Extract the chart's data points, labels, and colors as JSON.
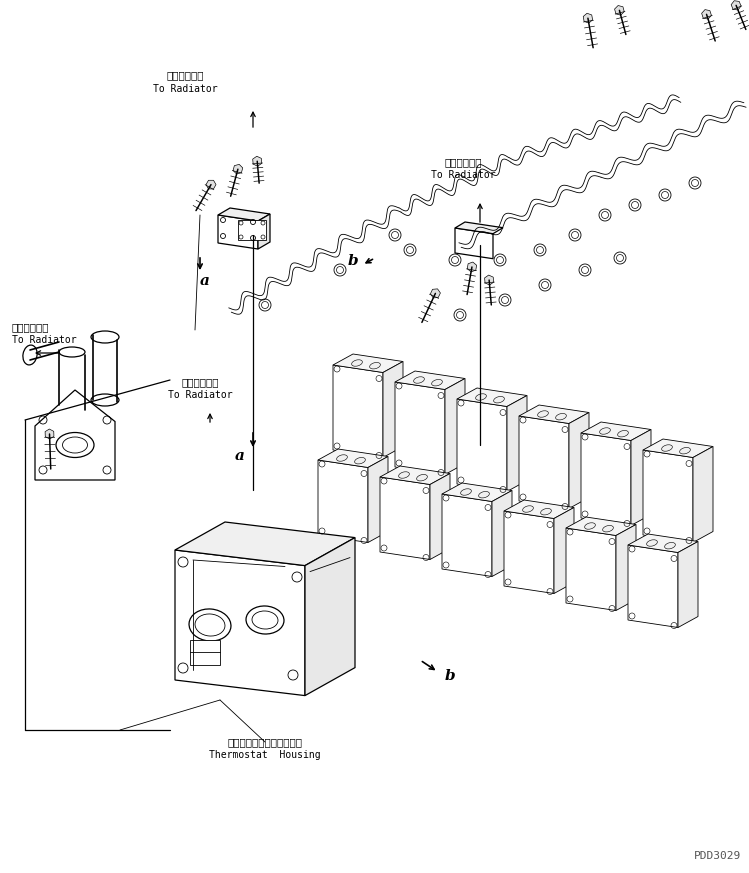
{
  "background_color": "#ffffff",
  "line_color": "#000000",
  "figure_width": 7.49,
  "figure_height": 8.73,
  "dpi": 100,
  "watermark": "PDD3029",
  "rad1_jp": "ラジエータへ",
  "rad1_en": "To Radiator",
  "rad2_jp": "ラジエータへ",
  "rad2_en": "To Radiator",
  "rad3_jp": "ラジエータへ",
  "rad3_en": "To Radiator",
  "rad4_jp": "ラジエータへ",
  "rad4_en": "To Radiator",
  "thermo_jp": "サーモスタットハウジング",
  "thermo_en": "Thermostat  Housing",
  "label_a": "a",
  "label_b1": "b",
  "label_b2": "b"
}
